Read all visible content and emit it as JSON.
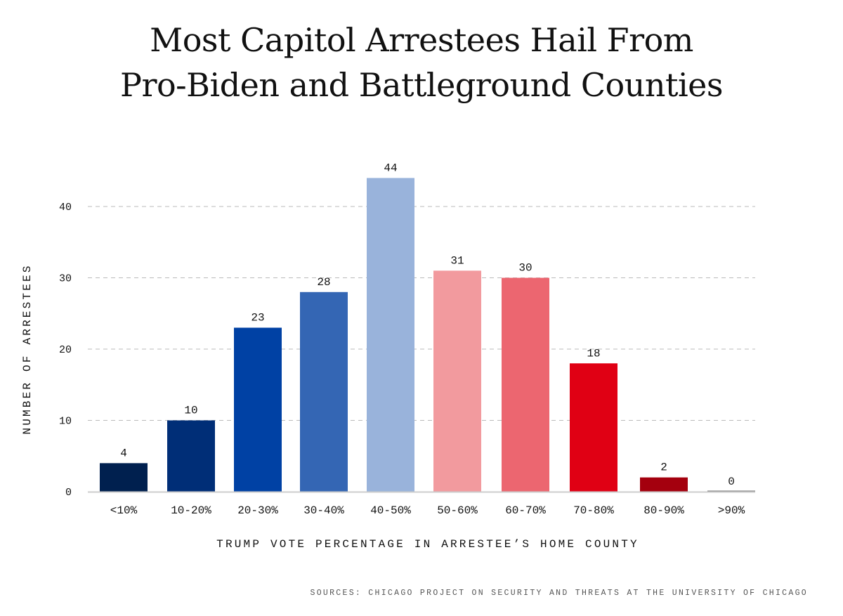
{
  "chart_data": {
    "type": "bar",
    "title_line1": "Most Capitol Arrestees Hail From",
    "title_line2": "Pro-Biden and Battleground Counties",
    "xlabel": "TRUMP VOTE PERCENTAGE IN ARRESTEE’S HOME COUNTY",
    "ylabel": "NUMBER OF ARRESTEES",
    "categories": [
      "<10%",
      "10-20%",
      "20-30%",
      "30-40%",
      "40-50%",
      "50-60%",
      "60-70%",
      "70-80%",
      "80-90%",
      ">90%"
    ],
    "values": [
      4,
      10,
      23,
      28,
      44,
      31,
      30,
      18,
      2,
      0
    ],
    "colors": [
      "#00204f",
      "#002e77",
      "#0041a4",
      "#3466b4",
      "#99b3db",
      "#f29a9e",
      "#ec6670",
      "#e00014",
      "#a4000e",
      "#777777"
    ],
    "yticks": [
      0,
      10,
      20,
      30,
      40
    ],
    "ylim": [
      0,
      44
    ],
    "grid": true
  },
  "source": "SOURCES: CHICAGO PROJECT ON SECURITY AND THREATS AT THE UNIVERSITY OF CHICAGO"
}
